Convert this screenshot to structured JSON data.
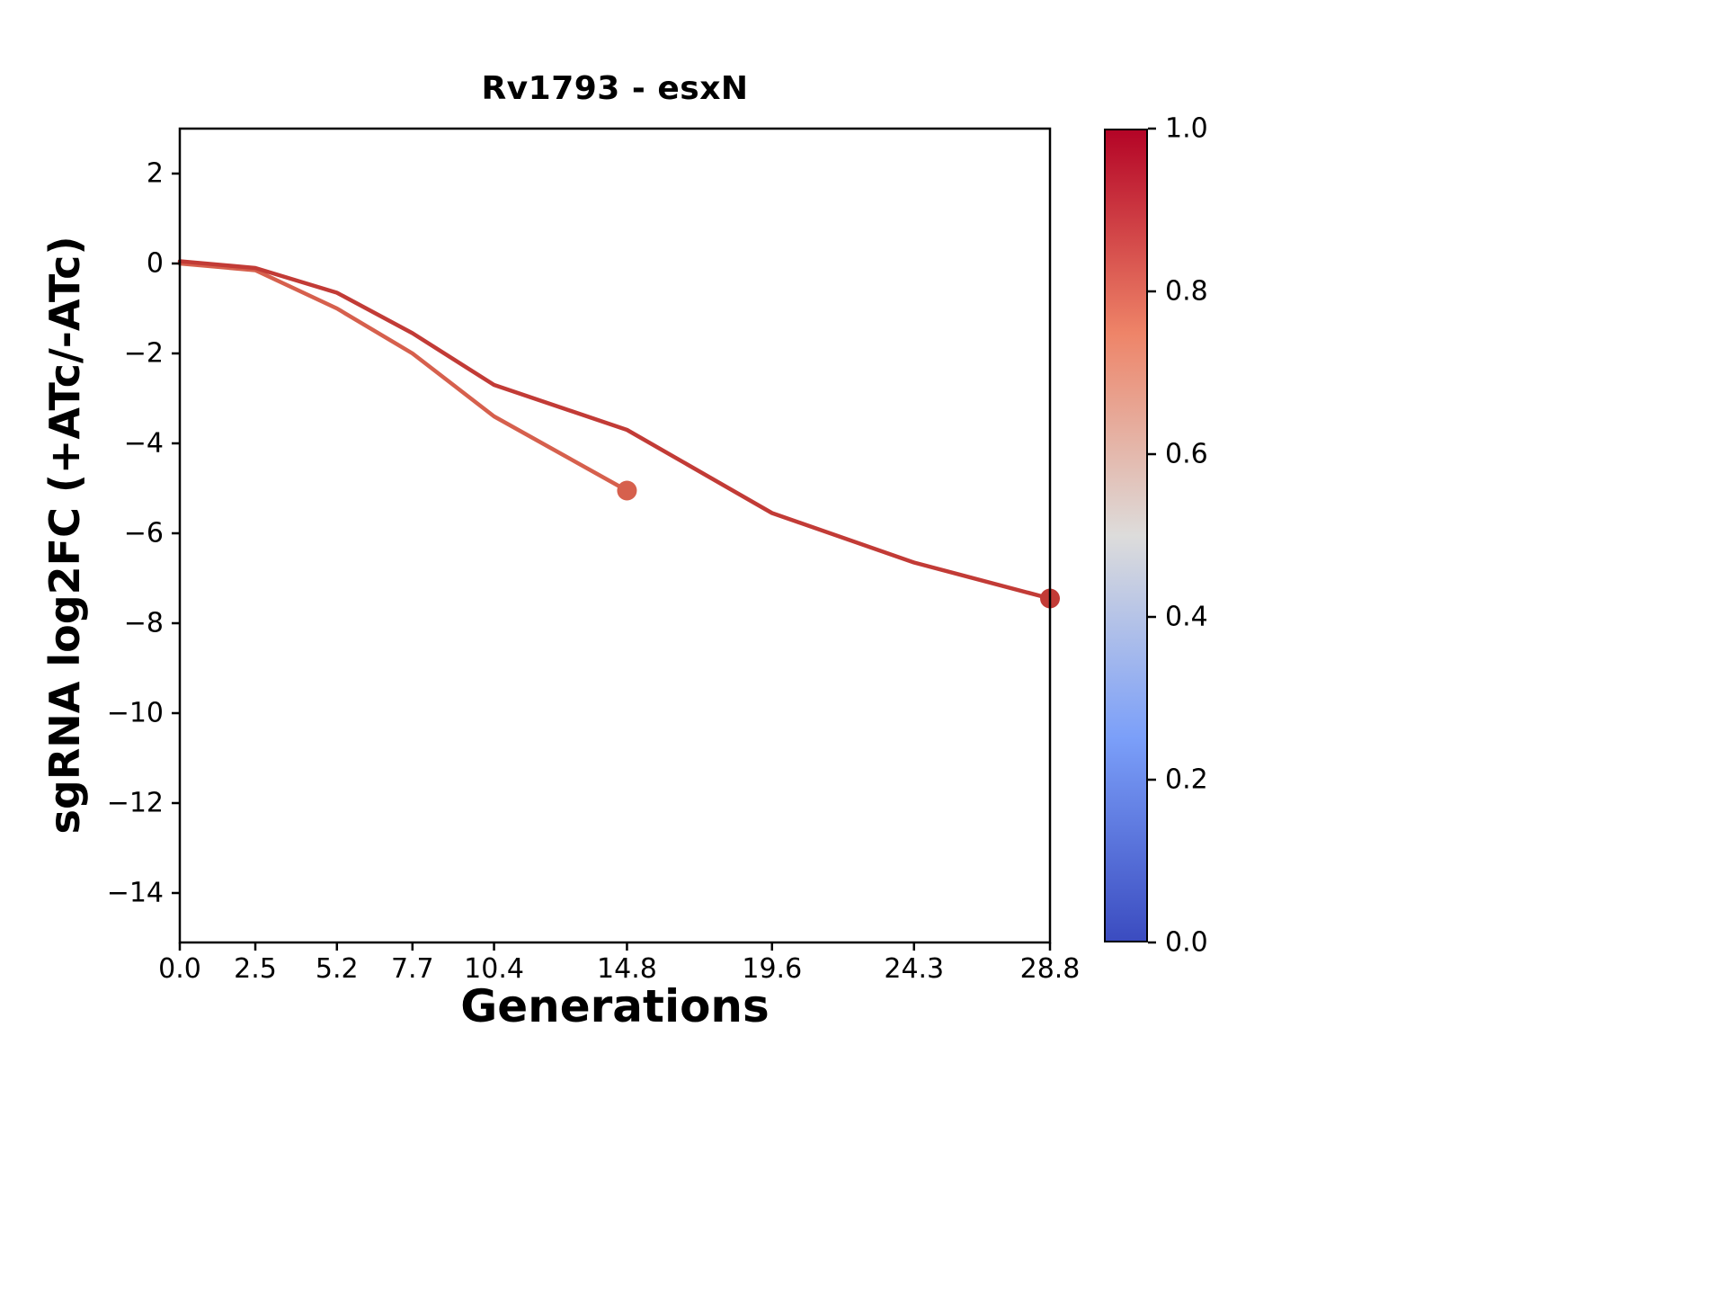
{
  "chart_data": {
    "type": "line",
    "title": "Rv1793 - esxN",
    "xlabel": "Generations",
    "ylabel": "sgRNA log2FC (+ATc/-ATc)",
    "xlim": [
      0.0,
      28.8
    ],
    "ylim": [
      -15.1,
      3.0
    ],
    "grid": false,
    "legend": null,
    "x_ticks": {
      "values": [
        0.0,
        2.5,
        5.2,
        7.7,
        10.4,
        14.8,
        19.6,
        24.3,
        28.8
      ],
      "labels": [
        "0.0",
        "2.5",
        "5.2",
        "7.7",
        "10.4",
        "14.8",
        "19.6",
        "24.3",
        "28.8"
      ]
    },
    "y_ticks": {
      "values": [
        2,
        0,
        -2,
        -4,
        -6,
        -8,
        -10,
        -12,
        -14
      ],
      "labels": [
        "2",
        "0",
        "−2",
        "−4",
        "−6",
        "−8",
        "−10",
        "−12",
        "−14"
      ]
    },
    "series": [
      {
        "color": "#d6604d",
        "x": [
          0.0,
          2.5,
          5.2,
          7.7,
          10.4,
          14.8
        ],
        "y": [
          0.0,
          -0.15,
          -1.0,
          -2.0,
          -3.4,
          -5.05
        ],
        "end_marker": true
      },
      {
        "color": "#c23b36",
        "x": [
          0.0,
          2.5,
          5.2,
          7.7,
          10.4,
          14.8,
          19.6,
          24.3,
          28.8
        ],
        "y": [
          0.05,
          -0.1,
          -0.65,
          -1.55,
          -2.7,
          -3.7,
          -5.55,
          -6.65,
          -7.45
        ],
        "end_marker": true
      }
    ],
    "colorbar": {
      "colormap": "coolwarm",
      "tick_values": [
        1.0,
        0.8,
        0.6,
        0.4,
        0.2,
        0.0
      ],
      "tick_labels": [
        "1.0",
        "0.8",
        "0.6",
        "0.4",
        "0.2",
        "0.0"
      ],
      "gradient_stops_bottom_to_top": [
        "#3b4cc0",
        "#7b9ff9",
        "#dddcdb",
        "#ee8468",
        "#b40426"
      ]
    }
  }
}
